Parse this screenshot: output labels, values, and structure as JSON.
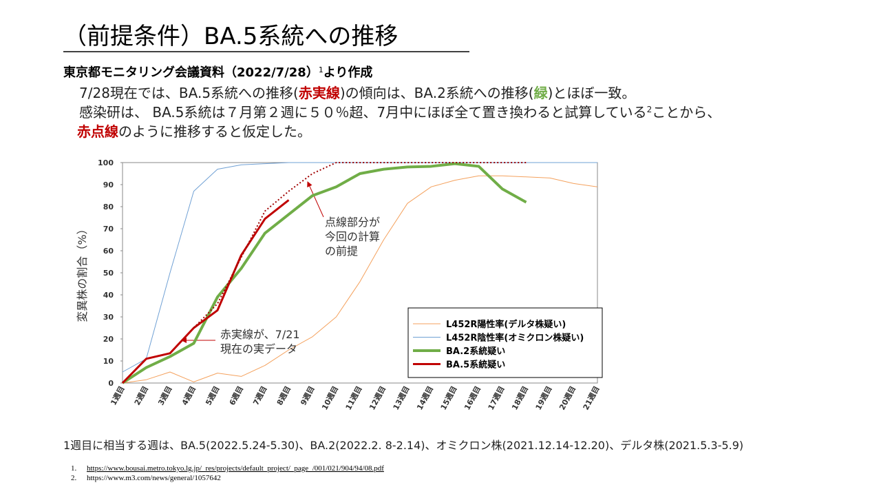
{
  "header": {
    "title": "（前提条件）BA.5系統への推移",
    "subtitle": [
      {
        "text": "東京都モニタリング会議資料（2022/7/28）"
      },
      {
        "text": "1",
        "sup": true
      },
      {
        "text": "より作成"
      }
    ]
  },
  "body": {
    "lines": [
      [
        {
          "text": "7/28現在では、BA.5系統への推移("
        },
        {
          "text": "赤実線",
          "color": "#c00000",
          "bold": true
        },
        {
          "text": ")の傾向は、BA.2系統への推移("
        },
        {
          "text": "緑",
          "color": "#70ad47",
          "bold": true
        },
        {
          "text": ")とほぼ一致。"
        }
      ],
      [
        {
          "text": "感染研は、 BA.5系統は７月第２週に５０％超、7月中にほぼ全て置き換わると試算している"
        },
        {
          "text": "2",
          "sup": true
        },
        {
          "text": "ことから、"
        }
      ],
      [
        {
          "text": "赤点線",
          "color": "#c00000",
          "bold": true
        },
        {
          "text": "のように推移すると仮定した。"
        }
      ]
    ]
  },
  "chart_data": {
    "type": "line",
    "y_label": "変異株の割合（%）",
    "categories": [
      "1週目",
      "2週目",
      "3週目",
      "4週目",
      "5週目",
      "6週目",
      "7週目",
      "8週目",
      "9週目",
      "10週目",
      "11週目",
      "12週目",
      "13週目",
      "14週目",
      "15週目",
      "16週目",
      "17週目",
      "18週目",
      "19週目",
      "20週目",
      "21週目"
    ],
    "ylim": [
      0,
      100
    ],
    "yticks": [
      0,
      10,
      20,
      30,
      40,
      50,
      60,
      70,
      80,
      90,
      100
    ],
    "grid": false,
    "legend": "lower right",
    "series": [
      {
        "name": "L452R陽性率(デルタ株疑い)",
        "color": "#f4a15d",
        "width": 1,
        "values": [
          0,
          1.5,
          5,
          0.5,
          4.5,
          3,
          8,
          15,
          21,
          30,
          46,
          65,
          81.5,
          89,
          92,
          94,
          94,
          93.5,
          93,
          90.5,
          89
        ]
      },
      {
        "name": "L452R陰性率(オミクロン株疑い)",
        "color": "#6fa0d4",
        "width": 1,
        "values": [
          5,
          11,
          50,
          87,
          97,
          99,
          99.5,
          100,
          100,
          100,
          100,
          100,
          100,
          100,
          100,
          100,
          100,
          100,
          100,
          100,
          100
        ]
      },
      {
        "name": "BA.2系統疑い",
        "color": "#70ad47",
        "width": 4,
        "values": [
          0,
          7,
          12,
          18,
          39,
          52,
          68,
          76.5,
          85,
          89,
          95,
          97,
          98,
          98.3,
          99.5,
          98.3,
          88,
          82,
          null,
          null,
          null
        ]
      },
      {
        "name": "BA.5系統疑い",
        "color": "#c00000",
        "width": 3,
        "values": [
          0,
          11,
          13.5,
          25,
          33,
          58,
          74.5,
          83,
          null,
          null,
          null,
          null,
          null,
          null,
          null,
          null,
          null,
          null,
          null,
          null,
          null
        ]
      },
      {
        "color": "#a00000",
        "width": 2,
        "dash": true,
        "values": [
          null,
          null,
          null,
          25,
          36,
          57,
          78,
          87,
          95,
          100,
          100,
          100,
          100,
          100,
          100,
          100,
          100,
          100,
          null,
          null,
          null
        ]
      }
    ],
    "annotations": [
      {
        "lines": [
          "点線部分が",
          "今回の計算",
          "の前提"
        ]
      },
      {
        "lines": [
          "赤実線が、7/21",
          "現在の実データ"
        ]
      }
    ]
  },
  "footer": {
    "note": "1週目に相当する週は、BA.5(2022.5.24-5.30)、BA.2(2022.2. 8-2.14)、オミクロン株(2021.12.14-12.20)、デルタ株(2021.5.3-5.9)",
    "references": [
      {
        "num": "1.",
        "text": "https://www.bousai.metro.tokyo.lg.jp/_res/projects/default_project/_page_/001/021/904/94/08.pdf",
        "link": true
      },
      {
        "num": "2.",
        "text": "https://www.m3.com/news/general/1057642"
      }
    ]
  }
}
